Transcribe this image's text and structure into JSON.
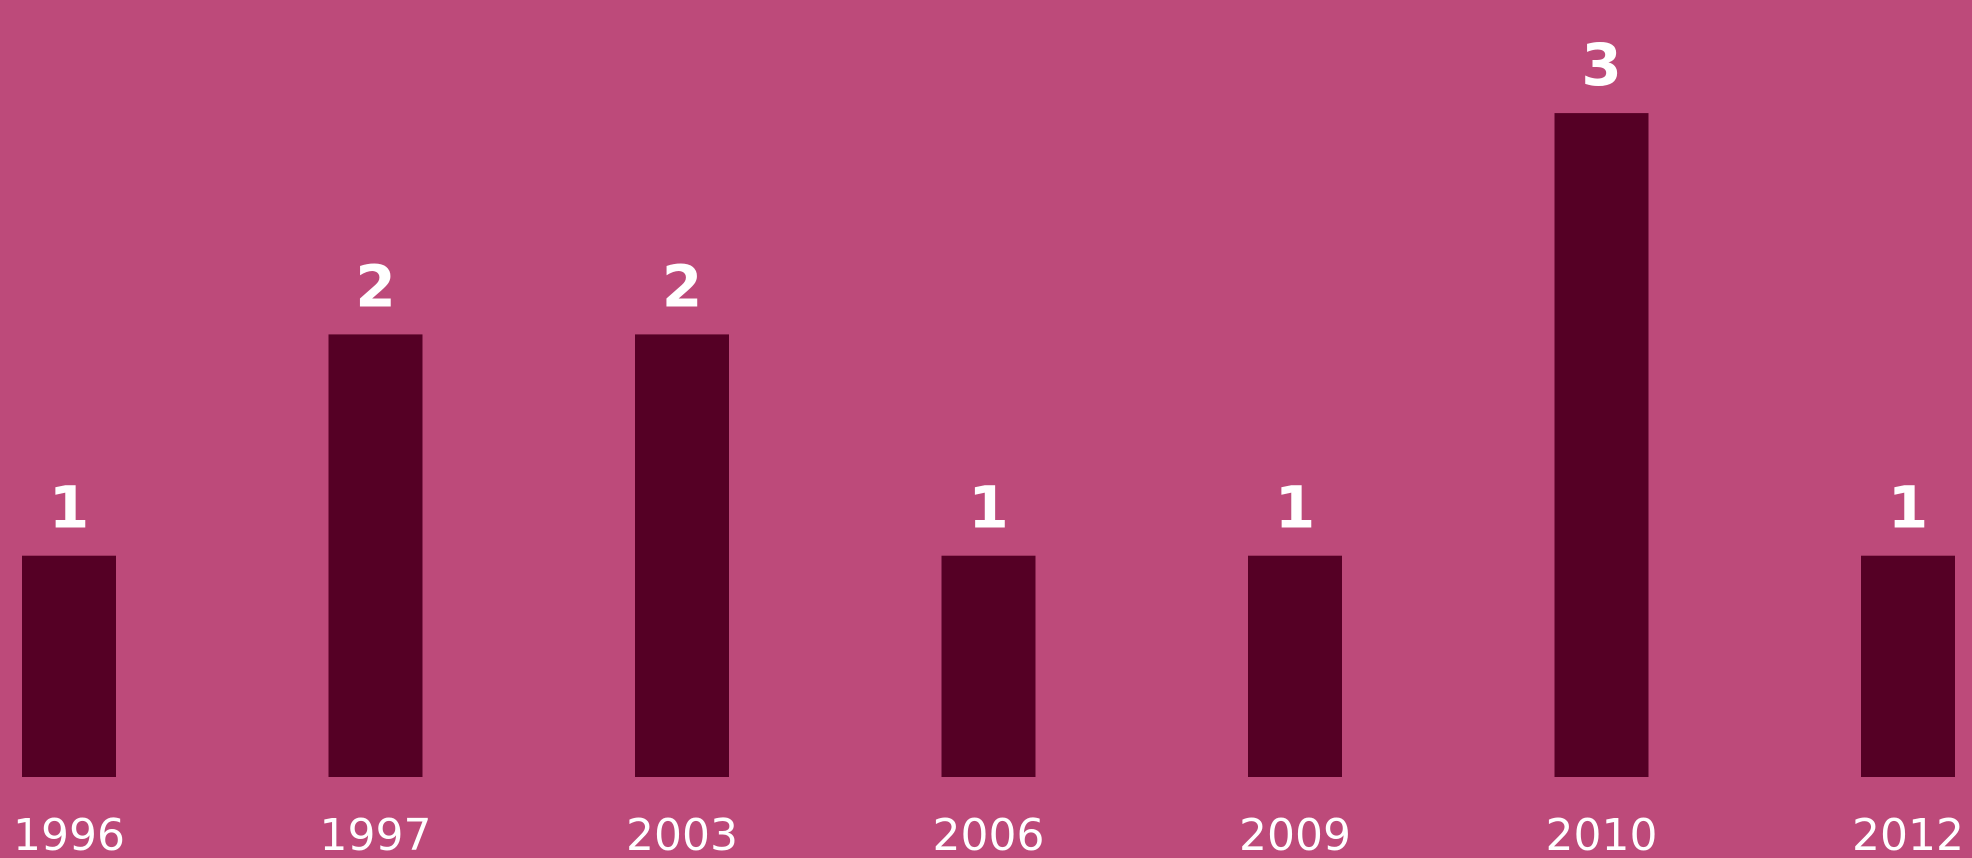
{
  "chart_data": {
    "type": "bar",
    "categories": [
      "1996",
      "1997",
      "2003",
      "2006",
      "2009",
      "2010",
      "2012"
    ],
    "values": [
      1,
      2,
      2,
      1,
      1,
      3,
      1
    ],
    "data_labels": [
      "1",
      "2",
      "2",
      "1",
      "1",
      "3",
      "1"
    ],
    "title": "",
    "xlabel": "",
    "ylabel": "",
    "ylim": [
      0,
      3
    ],
    "grid": false,
    "legend": "none"
  },
  "colors": {
    "background": "#bd4a7a",
    "bar": "#550025",
    "label": "#ffffff"
  }
}
